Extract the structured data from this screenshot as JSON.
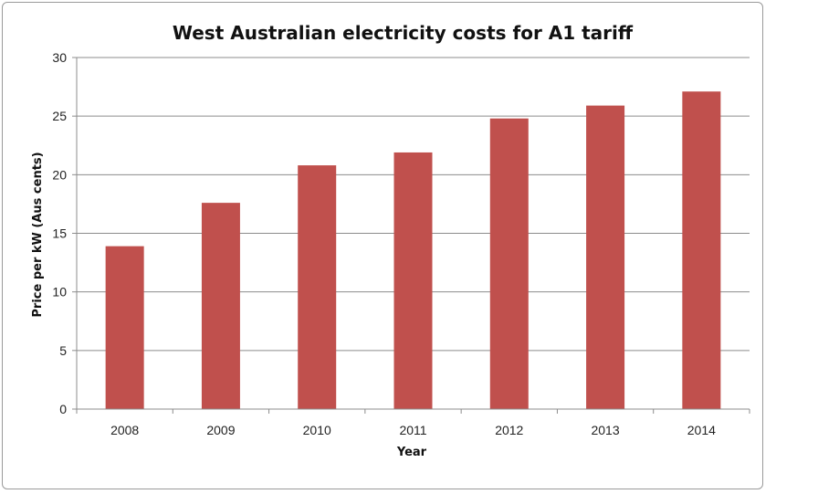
{
  "chart_data": {
    "type": "bar",
    "title": "West Australian electricity costs for A1 tariff",
    "xlabel": "Year",
    "ylabel": "Price per kW (Aus cents)",
    "categories": [
      "2008",
      "2009",
      "2010",
      "2011",
      "2012",
      "2013",
      "2014"
    ],
    "values": [
      13.9,
      17.6,
      20.8,
      21.9,
      24.8,
      25.9,
      27.1
    ],
    "ylim": [
      0,
      30
    ],
    "yticks": [
      "0",
      "5",
      "10",
      "15",
      "20",
      "25",
      "30"
    ],
    "grid": true,
    "legend": "none",
    "bar_color": "#c0504d",
    "grid_color": "#8c8c8c"
  }
}
